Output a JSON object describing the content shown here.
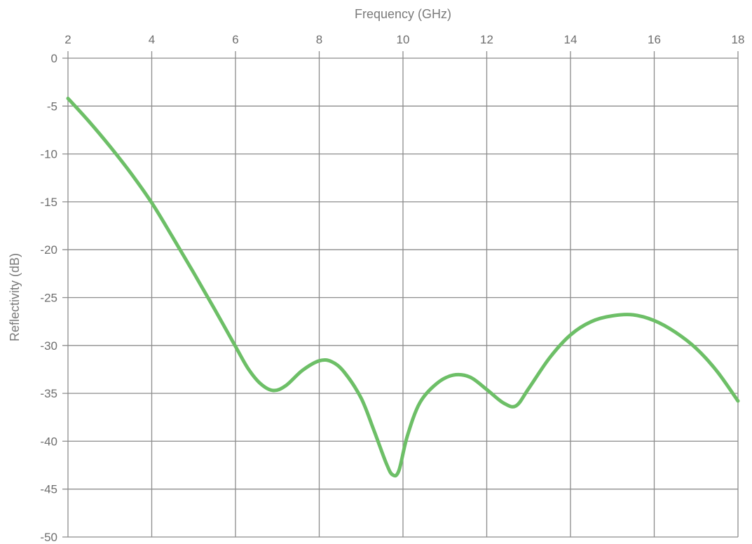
{
  "chart_data": {
    "type": "line",
    "title": "",
    "xlabel": "Frequency (GHz)",
    "ylabel": "Reflectivity (dB)",
    "xlim": [
      2,
      18
    ],
    "ylim": [
      -50,
      0
    ],
    "x_axis_position": "top",
    "x_ticks": [
      "2",
      "4",
      "6",
      "8",
      "10",
      "12",
      "14",
      "16",
      "18"
    ],
    "y_ticks": [
      "0",
      "-5",
      "-10",
      "-15",
      "-20",
      "-25",
      "-30",
      "-35",
      "-40",
      "-45",
      "-50"
    ],
    "grid": true,
    "series": [
      {
        "color": "#6dbf67",
        "x": [
          2,
          2.5,
          3,
          3.5,
          4,
          4.5,
          5,
          5.5,
          6,
          6.3,
          6.6,
          6.9,
          7.2,
          7.6,
          8,
          8.3,
          8.6,
          9,
          9.3,
          9.6,
          9.75,
          9.9,
          10.1,
          10.4,
          10.8,
          11.2,
          11.6,
          12,
          12.4,
          12.7,
          13,
          13.5,
          14,
          14.5,
          15,
          15.5,
          16,
          16.5,
          17,
          17.5,
          18
        ],
        "y": [
          -4.2,
          -6.6,
          -9.2,
          -12,
          -15.1,
          -18.7,
          -22.4,
          -26.2,
          -30.1,
          -32.4,
          -34,
          -34.7,
          -34.2,
          -32.6,
          -31.6,
          -31.7,
          -32.8,
          -35.5,
          -38.8,
          -42.3,
          -43.5,
          -43.1,
          -39.5,
          -36,
          -34,
          -33.1,
          -33.3,
          -34.6,
          -36,
          -36.3,
          -34.5,
          -31.3,
          -28.9,
          -27.5,
          -26.9,
          -26.8,
          -27.4,
          -28.6,
          -30.3,
          -32.7,
          -35.8
        ]
      }
    ]
  }
}
